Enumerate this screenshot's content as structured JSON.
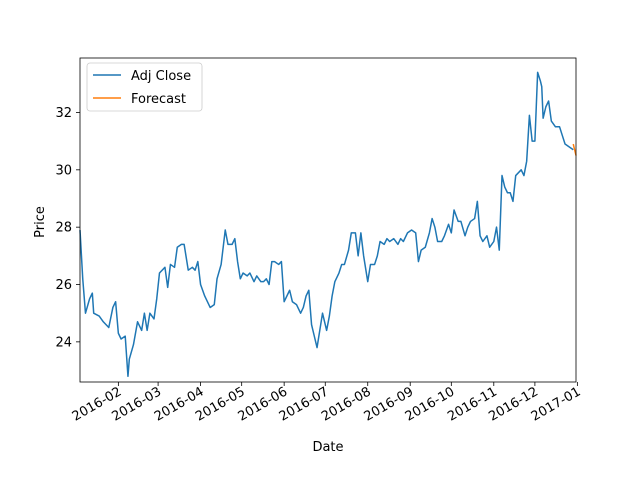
{
  "chart_data": {
    "type": "line",
    "xlabel": "Date",
    "ylabel": "Price",
    "xlim": [
      "2016-01-04",
      "2016-12-31"
    ],
    "ylim": [
      22.6,
      33.9
    ],
    "x_ticks": [
      "2016-02",
      "2016-03",
      "2016-04",
      "2016-05",
      "2016-06",
      "2016-07",
      "2016-08",
      "2016-09",
      "2016-10",
      "2016-11",
      "2016-12",
      "2017-01"
    ],
    "y_ticks": [
      24,
      26,
      28,
      30,
      32
    ],
    "legend": {
      "position": "upper-left"
    },
    "series": [
      {
        "name": "Adj Close",
        "color": "#1f77b4",
        "points": [
          [
            "2016-01-04",
            27.9
          ],
          [
            "2016-01-06",
            26.2
          ],
          [
            "2016-01-08",
            25.0
          ],
          [
            "2016-01-11",
            25.5
          ],
          [
            "2016-01-13",
            25.7
          ],
          [
            "2016-01-14",
            25.0
          ],
          [
            "2016-01-18",
            24.9
          ],
          [
            "2016-01-21",
            24.7
          ],
          [
            "2016-01-23",
            24.6
          ],
          [
            "2016-01-25",
            24.5
          ],
          [
            "2016-01-28",
            25.2
          ],
          [
            "2016-01-30",
            25.4
          ],
          [
            "2016-02-01",
            24.3
          ],
          [
            "2016-02-03",
            24.1
          ],
          [
            "2016-02-06",
            24.2
          ],
          [
            "2016-02-08",
            22.8
          ],
          [
            "2016-02-09",
            23.4
          ],
          [
            "2016-02-12",
            23.9
          ],
          [
            "2016-02-15",
            24.7
          ],
          [
            "2016-02-18",
            24.4
          ],
          [
            "2016-02-20",
            25.0
          ],
          [
            "2016-02-22",
            24.4
          ],
          [
            "2016-02-24",
            25.0
          ],
          [
            "2016-02-27",
            24.8
          ],
          [
            "2016-02-29",
            25.5
          ],
          [
            "2016-03-02",
            26.4
          ],
          [
            "2016-03-06",
            26.6
          ],
          [
            "2016-03-08",
            25.9
          ],
          [
            "2016-03-10",
            26.7
          ],
          [
            "2016-03-13",
            26.6
          ],
          [
            "2016-03-15",
            27.3
          ],
          [
            "2016-03-18",
            27.4
          ],
          [
            "2016-03-20",
            27.4
          ],
          [
            "2016-03-23",
            26.5
          ],
          [
            "2016-03-26",
            26.6
          ],
          [
            "2016-03-28",
            26.5
          ],
          [
            "2016-03-30",
            26.8
          ],
          [
            "2016-04-01",
            26.0
          ],
          [
            "2016-04-04",
            25.6
          ],
          [
            "2016-04-06",
            25.4
          ],
          [
            "2016-04-08",
            25.2
          ],
          [
            "2016-04-11",
            25.3
          ],
          [
            "2016-04-13",
            26.2
          ],
          [
            "2016-04-16",
            26.7
          ],
          [
            "2016-04-19",
            27.9
          ],
          [
            "2016-04-21",
            27.4
          ],
          [
            "2016-04-24",
            27.4
          ],
          [
            "2016-04-26",
            27.6
          ],
          [
            "2016-04-28",
            26.8
          ],
          [
            "2016-04-30",
            26.2
          ],
          [
            "2016-05-02",
            26.4
          ],
          [
            "2016-05-05",
            26.3
          ],
          [
            "2016-05-07",
            26.4
          ],
          [
            "2016-05-10",
            26.1
          ],
          [
            "2016-05-12",
            26.3
          ],
          [
            "2016-05-15",
            26.1
          ],
          [
            "2016-05-17",
            26.1
          ],
          [
            "2016-05-19",
            26.2
          ],
          [
            "2016-05-21",
            26.0
          ],
          [
            "2016-05-23",
            26.8
          ],
          [
            "2016-05-25",
            26.8
          ],
          [
            "2016-05-28",
            26.7
          ],
          [
            "2016-05-30",
            26.8
          ],
          [
            "2016-06-01",
            25.4
          ],
          [
            "2016-06-05",
            25.8
          ],
          [
            "2016-06-07",
            25.4
          ],
          [
            "2016-06-10",
            25.3
          ],
          [
            "2016-06-13",
            25.0
          ],
          [
            "2016-06-15",
            25.2
          ],
          [
            "2016-06-17",
            25.6
          ],
          [
            "2016-06-19",
            25.8
          ],
          [
            "2016-06-21",
            24.6
          ],
          [
            "2016-06-23",
            24.2
          ],
          [
            "2016-06-25",
            23.8
          ],
          [
            "2016-06-27",
            24.4
          ],
          [
            "2016-06-29",
            25.0
          ],
          [
            "2016-07-02",
            24.4
          ],
          [
            "2016-07-04",
            24.9
          ],
          [
            "2016-07-06",
            25.6
          ],
          [
            "2016-07-08",
            26.1
          ],
          [
            "2016-07-11",
            26.4
          ],
          [
            "2016-07-13",
            26.7
          ],
          [
            "2016-07-15",
            26.7
          ],
          [
            "2016-07-18",
            27.2
          ],
          [
            "2016-07-20",
            27.8
          ],
          [
            "2016-07-23",
            27.8
          ],
          [
            "2016-07-25",
            27.0
          ],
          [
            "2016-07-27",
            27.8
          ],
          [
            "2016-07-29",
            27.0
          ],
          [
            "2016-08-01",
            26.1
          ],
          [
            "2016-08-03",
            26.7
          ],
          [
            "2016-08-06",
            26.7
          ],
          [
            "2016-08-08",
            27.0
          ],
          [
            "2016-08-10",
            27.5
          ],
          [
            "2016-08-13",
            27.4
          ],
          [
            "2016-08-15",
            27.6
          ],
          [
            "2016-08-17",
            27.5
          ],
          [
            "2016-08-20",
            27.6
          ],
          [
            "2016-08-23",
            27.4
          ],
          [
            "2016-08-25",
            27.6
          ],
          [
            "2016-08-27",
            27.5
          ],
          [
            "2016-08-30",
            27.8
          ],
          [
            "2016-09-02",
            27.9
          ],
          [
            "2016-09-05",
            27.8
          ],
          [
            "2016-09-07",
            26.8
          ],
          [
            "2016-09-09",
            27.2
          ],
          [
            "2016-09-12",
            27.3
          ],
          [
            "2016-09-15",
            27.8
          ],
          [
            "2016-09-17",
            28.3
          ],
          [
            "2016-09-19",
            28.0
          ],
          [
            "2016-09-21",
            27.5
          ],
          [
            "2016-09-24",
            27.5
          ],
          [
            "2016-09-26",
            27.7
          ],
          [
            "2016-09-29",
            28.1
          ],
          [
            "2016-10-01",
            27.8
          ],
          [
            "2016-10-03",
            28.6
          ],
          [
            "2016-10-06",
            28.2
          ],
          [
            "2016-10-08",
            28.2
          ],
          [
            "2016-10-11",
            27.7
          ],
          [
            "2016-10-13",
            28.0
          ],
          [
            "2016-10-15",
            28.2
          ],
          [
            "2016-10-18",
            28.3
          ],
          [
            "2016-10-20",
            28.9
          ],
          [
            "2016-10-22",
            27.7
          ],
          [
            "2016-10-24",
            27.5
          ],
          [
            "2016-10-27",
            27.7
          ],
          [
            "2016-10-29",
            27.3
          ],
          [
            "2016-11-01",
            27.5
          ],
          [
            "2016-11-03",
            28.0
          ],
          [
            "2016-11-05",
            27.2
          ],
          [
            "2016-11-07",
            29.8
          ],
          [
            "2016-11-09",
            29.4
          ],
          [
            "2016-11-11",
            29.2
          ],
          [
            "2016-11-13",
            29.2
          ],
          [
            "2016-11-15",
            28.9
          ],
          [
            "2016-11-17",
            29.8
          ],
          [
            "2016-11-19",
            29.9
          ],
          [
            "2016-11-21",
            30.0
          ],
          [
            "2016-11-23",
            29.8
          ],
          [
            "2016-11-25",
            30.3
          ],
          [
            "2016-11-27",
            31.9
          ],
          [
            "2016-11-29",
            31.0
          ],
          [
            "2016-12-01",
            31.0
          ],
          [
            "2016-12-02",
            32.2
          ],
          [
            "2016-12-03",
            33.4
          ],
          [
            "2016-12-05",
            33.1
          ],
          [
            "2016-12-06",
            32.9
          ],
          [
            "2016-12-07",
            31.8
          ],
          [
            "2016-12-09",
            32.2
          ],
          [
            "2016-12-11",
            32.4
          ],
          [
            "2016-12-13",
            31.7
          ],
          [
            "2016-12-16",
            31.5
          ],
          [
            "2016-12-19",
            31.5
          ],
          [
            "2016-12-21",
            31.2
          ],
          [
            "2016-12-23",
            30.9
          ],
          [
            "2016-12-26",
            30.8
          ],
          [
            "2016-12-29",
            30.7
          ]
        ]
      },
      {
        "name": "Forecast",
        "color": "#ff7f0e",
        "points": [
          [
            "2016-12-29",
            30.9
          ],
          [
            "2016-12-30",
            30.7
          ],
          [
            "2016-12-31",
            30.5
          ]
        ]
      }
    ]
  }
}
